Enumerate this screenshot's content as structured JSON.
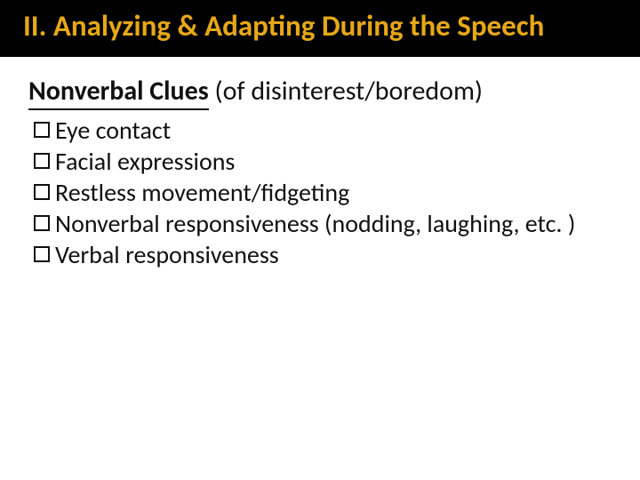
{
  "slide": {
    "title": "II.  Analyzing & Adapting During the Speech",
    "title_color": "#e6a817",
    "title_bg": "#000000",
    "title_fontsize": 33,
    "subtitle_underlined": "Nonverbal Clues",
    "subtitle_rest": " (of disinterest/boredom)",
    "subtitle_fontsize": 30,
    "bullets": [
      "Eye contact",
      "Facial expressions",
      "Restless movement/fidgeting",
      "Nonverbal responsiveness (nodding, laughing, etc. )",
      "Verbal responsiveness"
    ],
    "bullet_fontsize": 28,
    "background_color": "#ffffff",
    "text_color": "#111111"
  }
}
